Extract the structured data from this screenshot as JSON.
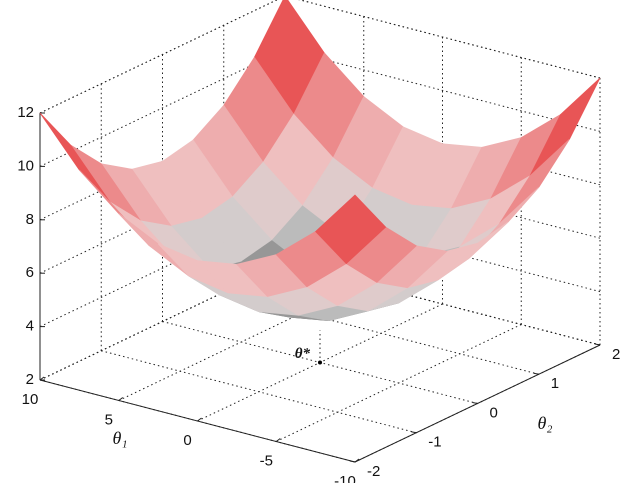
{
  "chart_data": {
    "type": "surface",
    "xlabel": "θ₁",
    "ylabel": "θ₂",
    "x": [
      -10,
      -7.5,
      -5,
      -2.5,
      0,
      2.5,
      5,
      7.5,
      10
    ],
    "y": [
      -2,
      -1.5,
      -1,
      -0.5,
      0,
      0.5,
      1,
      1.5,
      2
    ],
    "z": [
      [
        12,
        10.25,
        9,
        8.25,
        8,
        8.25,
        9,
        10.25,
        12
      ],
      [
        10.25,
        8.5,
        7.25,
        6.5,
        6.25,
        6.5,
        7.25,
        8.5,
        10.25
      ],
      [
        9,
        7.25,
        6,
        5.25,
        5,
        5.25,
        6,
        7.25,
        9
      ],
      [
        8.25,
        6.5,
        5.25,
        4.5,
        4.25,
        4.5,
        5.25,
        6.5,
        8.25
      ],
      [
        8,
        6.25,
        5,
        4.25,
        4,
        4.25,
        5,
        6.25,
        8
      ],
      [
        8.25,
        6.5,
        5.25,
        4.5,
        4.25,
        4.5,
        5.25,
        6.5,
        8.25
      ],
      [
        9,
        7.25,
        6,
        5.25,
        5,
        5.25,
        6,
        7.25,
        9
      ],
      [
        10.25,
        8.5,
        7.25,
        6.5,
        6.25,
        6.5,
        7.25,
        8.5,
        10.25
      ],
      [
        12,
        10.25,
        9,
        8.25,
        8,
        8.25,
        9,
        10.25,
        12
      ]
    ],
    "xlim": [
      -10,
      10
    ],
    "ylim": [
      -2,
      2
    ],
    "zlim": [
      2,
      12
    ],
    "xticks": [
      -10,
      -5,
      0,
      5,
      10
    ],
    "yticks": [
      -2,
      -1,
      0,
      1,
      2
    ],
    "zticks": [
      2,
      4,
      6,
      8,
      10,
      12
    ],
    "grid": true,
    "annotation": {
      "label": "θ*",
      "x": 0,
      "y": 0
    }
  }
}
